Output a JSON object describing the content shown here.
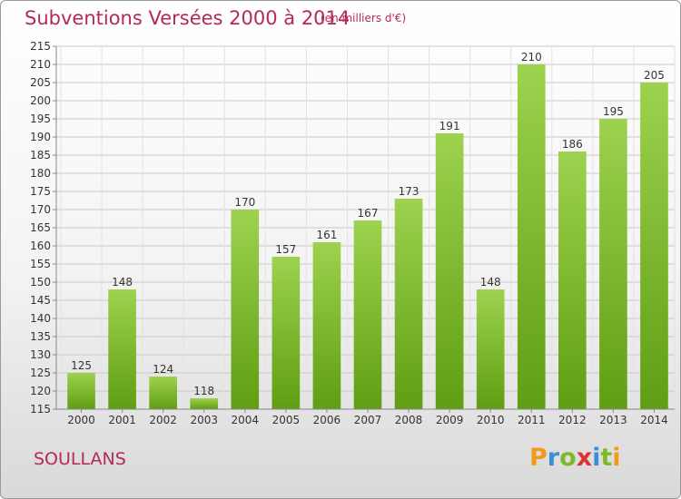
{
  "title": "Subventions Versées 2000 à 2014",
  "unit_note": "(en milliers d'€)",
  "commune": "SOULLANS",
  "logo": {
    "text": "Proxiti",
    "letters": [
      {
        "char": "P",
        "color": "#f39a1e"
      },
      {
        "char": "r",
        "color": "#3b8fd6"
      },
      {
        "char": "o",
        "color": "#7bbb2b"
      },
      {
        "char": "x",
        "color": "#e0322f"
      },
      {
        "char": "i",
        "color": "#3b8fd6"
      },
      {
        "char": "t",
        "color": "#7bbb2b"
      },
      {
        "char": "i",
        "color": "#f39a1e"
      }
    ]
  },
  "colors": {
    "bar_light": "#9dd24e",
    "bar_dark": "#5f9e12",
    "grid": "#c8c8c8",
    "text": "#333333",
    "accent": "#b5285d"
  },
  "chart_data": {
    "type": "bar",
    "categories": [
      "2000",
      "2001",
      "2002",
      "2003",
      "2004",
      "2005",
      "2006",
      "2007",
      "2008",
      "2009",
      "2010",
      "2011",
      "2012",
      "2013",
      "2014"
    ],
    "values": [
      125,
      148,
      124,
      118,
      170,
      157,
      161,
      167,
      173,
      191,
      148,
      210,
      186,
      195,
      205
    ],
    "ylim": [
      115,
      215
    ],
    "ytick_step": 5,
    "grid": true,
    "data_labels": true
  }
}
